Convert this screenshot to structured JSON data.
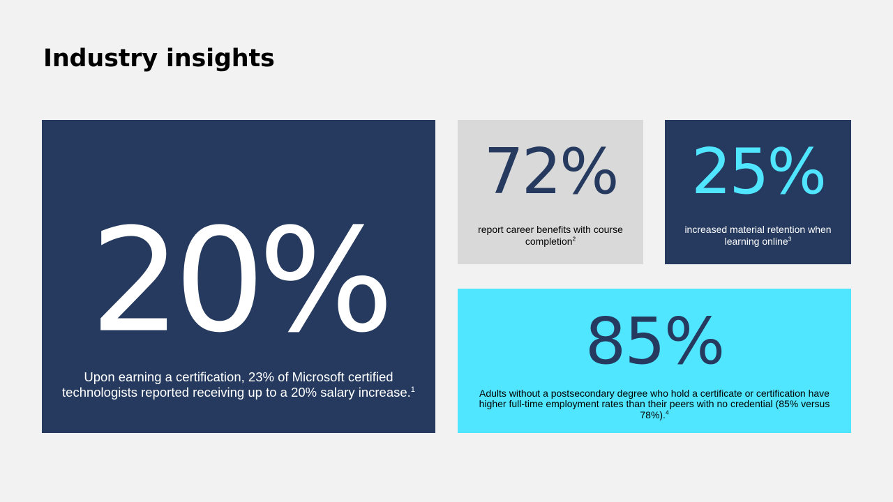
{
  "slide": {
    "title": "Industry insights",
    "colors": {
      "background": "#f2f2f2",
      "navy": "#253a5e",
      "gray": "#d9d9d9",
      "cyan": "#50e6ff",
      "white": "#ffffff",
      "black": "#000000"
    }
  },
  "cards": {
    "main": {
      "stat": "20%",
      "text": "Upon earning a certification, 23% of Microsoft certified technologists reported receiving up to a 20% salary increase.",
      "footnote": "1"
    },
    "career": {
      "stat": "72%",
      "text": "report career benefits with course completion",
      "footnote": "2"
    },
    "retention": {
      "stat": "25%",
      "text": "increased material retention when learning online",
      "footnote": "3"
    },
    "employment": {
      "stat": "85%",
      "text": "Adults without a postsecondary degree who hold a certificate or certification have higher full-time employment rates than their peers with no credential (85% versus 78%).",
      "footnote": "4"
    }
  }
}
